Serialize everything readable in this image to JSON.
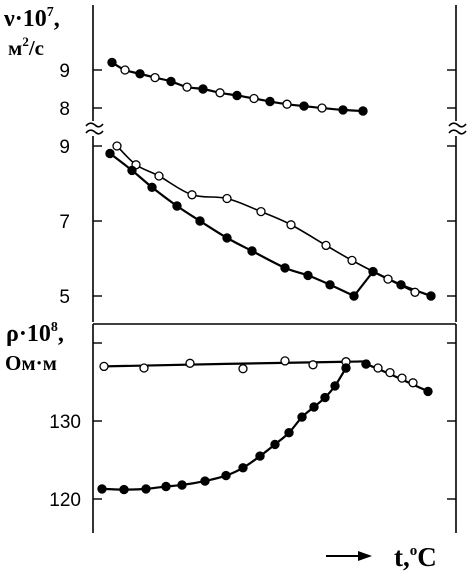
{
  "chart_data": [
    {
      "type": "line",
      "ylabel": "ν·10^7, м²/с",
      "ylabel_parts": {
        "sym": "ν·10",
        "exp": "7",
        "unit_a": "м",
        "unit_exp": "2",
        "unit_b": "/с"
      },
      "upper_axis": {
        "ticks": [
          "9",
          "8"
        ],
        "range": [
          7.7,
          9.3
        ]
      },
      "lower_axis": {
        "ticks": [
          "9",
          "7",
          "5"
        ],
        "range": [
          4.7,
          9.5
        ]
      },
      "axis_break": true,
      "grid": false,
      "series": [
        {
          "marker": "mixed",
          "axis": "upper",
          "x": [
            112,
            125,
            140,
            155,
            171,
            187,
            203,
            220,
            237,
            254,
            270,
            287,
            304,
            322,
            343,
            363
          ],
          "y": [
            9.2,
            9.0,
            8.9,
            8.8,
            8.7,
            8.55,
            8.5,
            8.4,
            8.33,
            8.25,
            8.17,
            8.1,
            8.05,
            8.0,
            7.95,
            7.92
          ],
          "markers": [
            "f",
            "o",
            "f",
            "o",
            "f",
            "o",
            "f",
            "o",
            "f",
            "o",
            "f",
            "o",
            "f",
            "o",
            "f",
            "f"
          ]
        },
        {
          "marker": "open",
          "axis": "lower",
          "x": [
            117,
            136,
            159,
            192,
            227,
            261,
            291,
            326,
            352,
            388,
            415
          ],
          "y": [
            9.0,
            8.5,
            8.2,
            7.7,
            7.6,
            7.25,
            6.9,
            6.35,
            5.95,
            5.45,
            5.1
          ]
        },
        {
          "marker": "filled",
          "axis": "lower",
          "x": [
            110,
            132,
            152,
            177,
            200,
            227,
            252,
            285,
            308,
            330,
            354,
            373,
            401,
            431
          ],
          "y": [
            8.8,
            8.35,
            7.9,
            7.4,
            7.0,
            6.55,
            6.2,
            5.75,
            5.55,
            5.3,
            5.0,
            5.65,
            5.3,
            5.0
          ]
        }
      ]
    },
    {
      "type": "line",
      "ylabel": "ρ·10^8, Ом·м",
      "ylabel_parts": {
        "sym": "ρ·10",
        "exp": "8",
        "unit": "Ом·м"
      },
      "yticks": [
        "130",
        "120"
      ],
      "ylim": [
        118,
        143
      ],
      "xlabel": "t,°C",
      "xlabel_parts": {
        "t": "t,",
        "deg": "o",
        "unit": "C"
      },
      "grid": false,
      "series": [
        {
          "marker": "open",
          "x": [
            104,
            144,
            190,
            243,
            285,
            313,
            346,
            378,
            390,
            402,
            413
          ],
          "y": [
            137.0,
            136.8,
            137.4,
            136.7,
            137.7,
            137.2,
            137.6,
            136.8,
            136.2,
            135.5,
            134.9
          ]
        },
        {
          "marker": "filled",
          "x": [
            102,
            124,
            146,
            166,
            182,
            205,
            226,
            243,
            260,
            275,
            289,
            302,
            314,
            325,
            335,
            346,
            366,
            428
          ],
          "y": [
            121.3,
            121.2,
            121.3,
            121.6,
            121.8,
            122.3,
            123.0,
            124.0,
            125.5,
            127.0,
            128.5,
            130.5,
            131.8,
            133.0,
            134.5,
            136.8,
            137.3,
            133.8
          ]
        }
      ]
    }
  ]
}
